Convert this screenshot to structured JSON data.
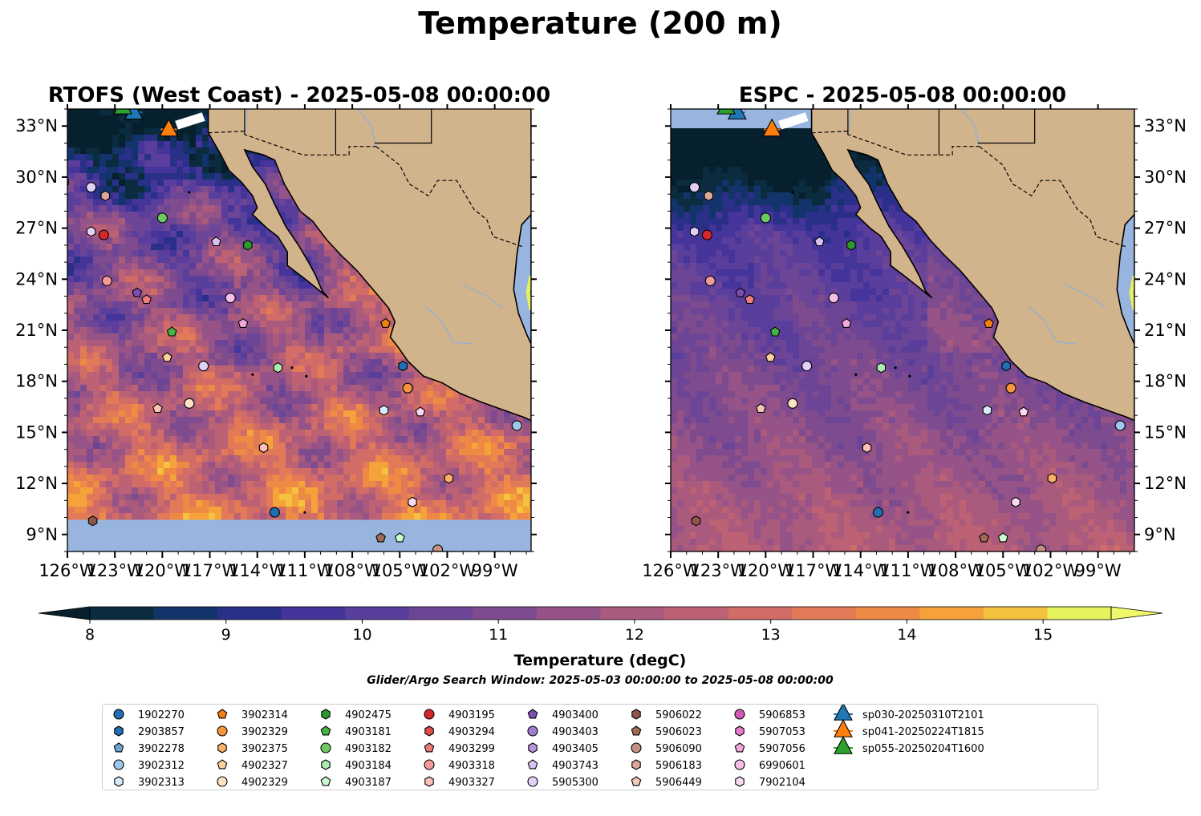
{
  "figure": {
    "title": "Temperature (200 m)",
    "search_window": "Glider/Argo Search Window: 2025-05-03 00:00:00 to 2025-05-08 00:00:00"
  },
  "panels": [
    {
      "title": "RTOFS (West Coast) - 2025-05-08 00:00:00",
      "model": "RTOFS",
      "field_style": "warm",
      "has_blank_band_south": true
    },
    {
      "title": "ESPC - 2025-05-08 00:00:00",
      "model": "ESPC",
      "field_style": "cool",
      "has_blank_band_south": false
    }
  ],
  "map_extent": {
    "lon": [
      -126,
      -96.7
    ],
    "lat": [
      8,
      34
    ]
  },
  "lon_ticks": [
    "126°W",
    "123°W",
    "120°W",
    "117°W",
    "114°W",
    "111°W",
    "108°W",
    "105°W",
    "102°W",
    "99°W"
  ],
  "lat_ticks": [
    "9°N",
    "12°N",
    "15°N",
    "18°N",
    "21°N",
    "24°N",
    "27°N",
    "30°N",
    "33°N"
  ],
  "colorbar": {
    "label": "Temperature (degC)",
    "ticks": [
      "8",
      "9",
      "10",
      "11",
      "12",
      "13",
      "14",
      "15"
    ],
    "min": 8,
    "max": 15.5,
    "step": 0.5,
    "colors": [
      "#0b2b3f",
      "#13346a",
      "#2a3088",
      "#45349a",
      "#5a3e9c",
      "#6c4596",
      "#7e4b8e",
      "#955388",
      "#aa5a7c",
      "#bd6274",
      "#d16c66",
      "#e27a58",
      "#ef8a45",
      "#f5a23b",
      "#f4c23e",
      "#e6f25c"
    ],
    "under_color": "#07202d",
    "over_color": "#eef86a"
  },
  "colors": {
    "land": "#d2b48c",
    "blank": "#98b5e0",
    "coast": "#000000",
    "river": "#8fb0d6"
  },
  "floats": [
    {
      "id": "1902270",
      "marker": "circle",
      "color": "#1f6fb2",
      "lon": -112.9,
      "lat": 10.3
    },
    {
      "id": "2903857",
      "marker": "hexagon",
      "color": "#1f6fb2",
      "lon": -104.8,
      "lat": 18.9
    },
    {
      "id": "3902278",
      "marker": "pentagon",
      "color": "#6ba6d6",
      "lon": null,
      "lat": null
    },
    {
      "id": "3902312",
      "marker": "circle",
      "color": "#9ec8ec",
      "lon": -97.6,
      "lat": 15.4
    },
    {
      "id": "3902313",
      "marker": "hexagon",
      "color": "#d6ecfa",
      "lon": -106.0,
      "lat": 16.3
    },
    {
      "id": "3902314",
      "marker": "pentagon",
      "color": "#f07f11",
      "lon": -105.9,
      "lat": 21.4
    },
    {
      "id": "3902329",
      "marker": "circle",
      "color": "#f7953a",
      "lon": -104.5,
      "lat": 17.6
    },
    {
      "id": "3902375",
      "marker": "hexagon",
      "color": "#fbb268",
      "lon": -101.9,
      "lat": 12.3
    },
    {
      "id": "4902327",
      "marker": "pentagon",
      "color": "#fcd19b",
      "lon": -119.7,
      "lat": 19.4
    },
    {
      "id": "4902329",
      "marker": "circle",
      "color": "#fde2c4",
      "lon": -118.3,
      "lat": 16.7
    },
    {
      "id": "4902475",
      "marker": "hexagon",
      "color": "#2a9a2a",
      "lon": -114.6,
      "lat": 26.0
    },
    {
      "id": "4903181",
      "marker": "pentagon",
      "color": "#45b445",
      "lon": -119.4,
      "lat": 20.9
    },
    {
      "id": "4903182",
      "marker": "circle",
      "color": "#6dca62",
      "lon": -120.0,
      "lat": 27.6
    },
    {
      "id": "4903184",
      "marker": "hexagon",
      "color": "#a9ebb0",
      "lon": -112.7,
      "lat": 18.8
    },
    {
      "id": "4903187",
      "marker": "pentagon",
      "color": "#cdfbd0",
      "lon": -105.0,
      "lat": 8.8
    },
    {
      "id": "4903195",
      "marker": "circle",
      "color": "#d62728",
      "lon": -123.7,
      "lat": 26.6
    },
    {
      "id": "4903294",
      "marker": "hexagon",
      "color": "#e24a4a",
      "lon": -126.2,
      "lat": 29.7
    },
    {
      "id": "4903299",
      "marker": "pentagon",
      "color": "#f07c7c",
      "lon": -121.0,
      "lat": 22.8
    },
    {
      "id": "4903318",
      "marker": "circle",
      "color": "#f29a9a",
      "lon": -123.5,
      "lat": 23.9
    },
    {
      "id": "4903327",
      "marker": "hexagon",
      "color": "#fbc0b8",
      "lon": -113.6,
      "lat": 14.1
    },
    {
      "id": "4903400",
      "marker": "pentagon",
      "color": "#7d4fb5",
      "lon": -121.6,
      "lat": 23.2
    },
    {
      "id": "4903403",
      "marker": "circle",
      "color": "#a07bd0",
      "lon": null,
      "lat": null
    },
    {
      "id": "4903405",
      "marker": "hexagon",
      "color": "#b894dc",
      "lon": null,
      "lat": null
    },
    {
      "id": "4903743",
      "marker": "pentagon",
      "color": "#d8c2f2",
      "lon": -116.6,
      "lat": 26.2
    },
    {
      "id": "5905300",
      "marker": "circle",
      "color": "#e3d0f7",
      "lon": -117.4,
      "lat": 18.9
    },
    {
      "id": "5906022",
      "marker": "hexagon",
      "color": "#8c564b",
      "lon": -124.4,
      "lat": 9.8
    },
    {
      "id": "5906023",
      "marker": "pentagon",
      "color": "#a06a56",
      "lon": -106.2,
      "lat": 8.8
    },
    {
      "id": "5906090",
      "marker": "circle",
      "color": "#c29181",
      "lon": -102.6,
      "lat": 8.1
    },
    {
      "id": "5906183",
      "marker": "hexagon",
      "color": "#dba899",
      "lon": -123.6,
      "lat": 28.9
    },
    {
      "id": "5906449",
      "marker": "pentagon",
      "color": "#f2c8b4",
      "lon": -120.3,
      "lat": 16.4
    },
    {
      "id": "5906853",
      "marker": "circle",
      "color": "#d25ab4",
      "lon": null,
      "lat": null
    },
    {
      "id": "5907053",
      "marker": "hexagon",
      "color": "#e67acb",
      "lon": null,
      "lat": null
    },
    {
      "id": "5907056",
      "marker": "pentagon",
      "color": "#f3a8dd",
      "lon": -114.9,
      "lat": 21.4
    },
    {
      "id": "6990601",
      "marker": "circle",
      "color": "#f7bfe8",
      "lon": -115.7,
      "lat": 22.9
    },
    {
      "id": "7902104",
      "marker": "hexagon",
      "color": "#fbd9f2",
      "lon": -104.2,
      "lat": 10.9
    }
  ],
  "extra_markers": [
    {
      "marker": "pentagon",
      "color": "#fbd9f2",
      "lon": -103.7,
      "lat": 16.2
    },
    {
      "marker": "circle",
      "color": "#e3d0f7",
      "lon": -124.5,
      "lat": 29.4
    },
    {
      "marker": "hexagon",
      "color": "#e3d0f7",
      "lon": -124.5,
      "lat": 26.8
    }
  ],
  "gliders": [
    {
      "id": "sp030-20250310T2101",
      "color": "#1f77b4",
      "lon": -121.8,
      "lat": 33.8
    },
    {
      "id": "sp041-20250224T1815",
      "color": "#ff7f0e",
      "lon": -119.6,
      "lat": 32.8
    },
    {
      "id": "sp055-20250204T1600",
      "color": "#2ca02c",
      "lon": -122.5,
      "lat": 34.1
    }
  ]
}
